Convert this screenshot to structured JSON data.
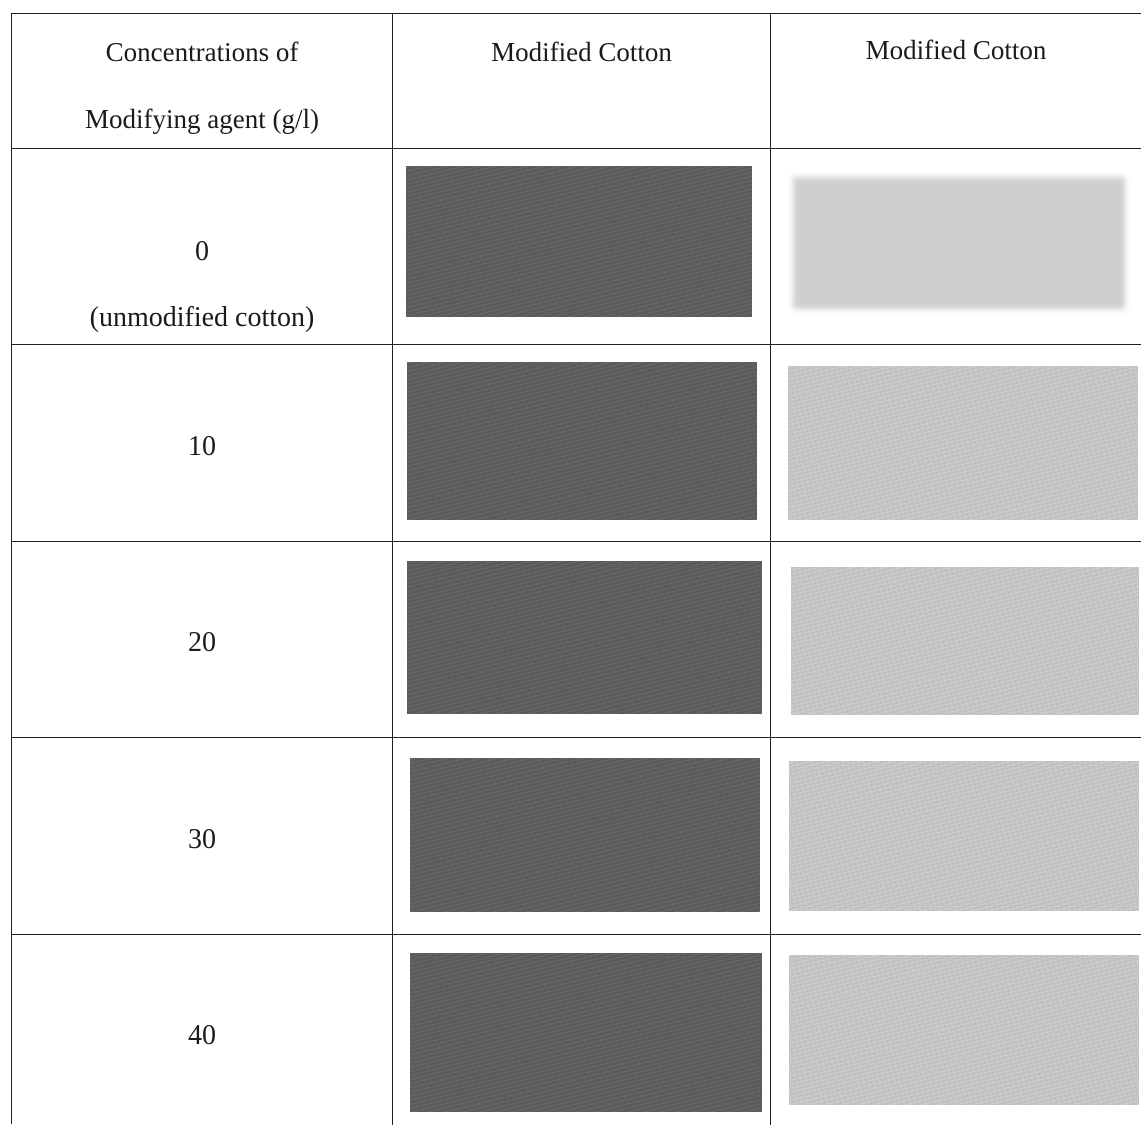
{
  "header": {
    "col1_line1": "Concentrations of",
    "col1_line2": "Modifying agent (g/l)",
    "col2": "Modified Cotton",
    "col3": "Modified Cotton"
  },
  "rows": [
    {
      "concentration": "0",
      "note": "(unmodified cotton)"
    },
    {
      "concentration": "10"
    },
    {
      "concentration": "20"
    },
    {
      "concentration": "30"
    },
    {
      "concentration": "40"
    }
  ],
  "swatch_colors": {
    "dark": "#5c5c5c",
    "light": "#c4c4c4"
  }
}
